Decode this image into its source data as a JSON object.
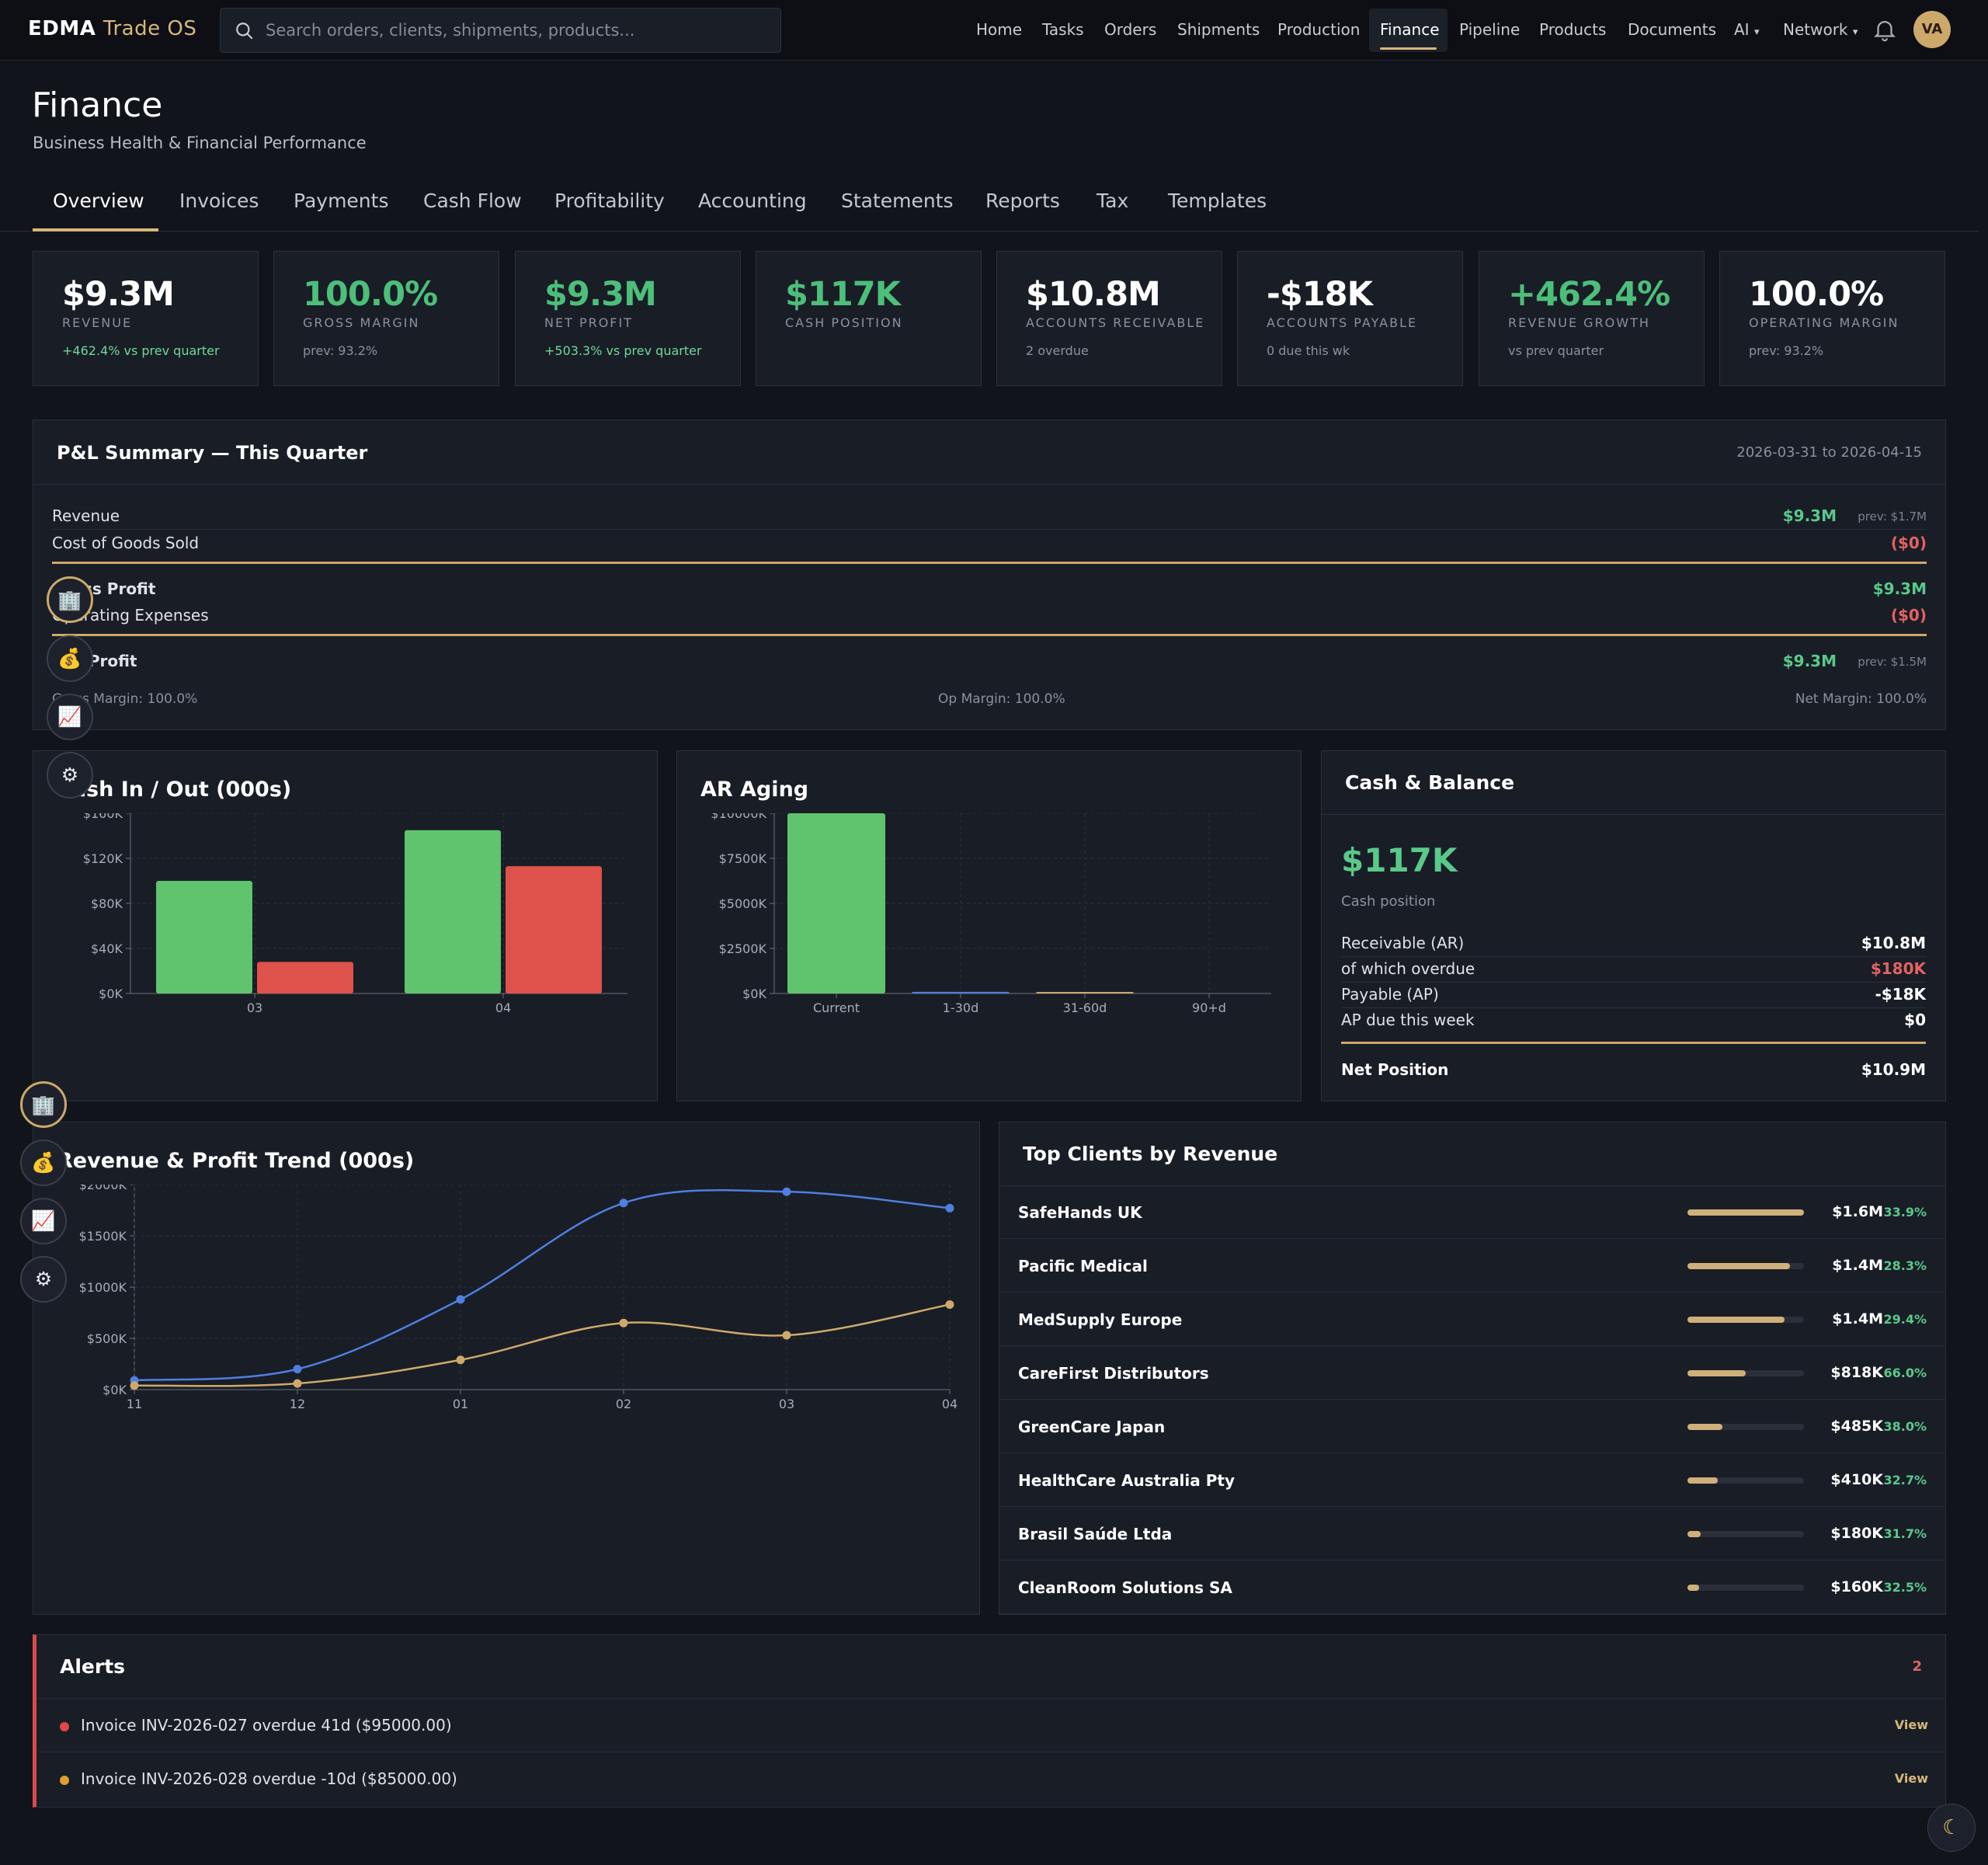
{
  "brand": {
    "name": "EDMA",
    "suffix": "Trade OS"
  },
  "search": {
    "placeholder": "Search orders, clients, shipments, products..."
  },
  "nav": {
    "items": [
      "Home",
      "Tasks",
      "Orders",
      "Shipments",
      "Production",
      "Finance",
      "Pipeline",
      "Products",
      "Documents",
      "AI",
      "Network"
    ],
    "active": "Finance"
  },
  "user": {
    "initials": "VA"
  },
  "page": {
    "title": "Finance",
    "subtitle": "Business Health & Financial Performance"
  },
  "tabs": [
    "Overview",
    "Invoices",
    "Payments",
    "Cash Flow",
    "Profitability",
    "Accounting",
    "Statements",
    "Reports",
    "Tax",
    "Templates"
  ],
  "kpis": [
    {
      "value": "$9.3M",
      "label": "REVENUE",
      "sub": "+462.4% vs prev quarter"
    },
    {
      "value": "100.0%",
      "label": "GROSS MARGIN",
      "sub": "prev: 93.2%"
    },
    {
      "value": "$9.3M",
      "label": "NET PROFIT",
      "sub": "+503.3% vs prev quarter"
    },
    {
      "value": "$117K",
      "label": "CASH POSITION",
      "sub": ""
    },
    {
      "value": "$10.8M",
      "label": "ACCOUNTS RECEIVABLE",
      "sub": "2 overdue"
    },
    {
      "value": "-$18K",
      "label": "ACCOUNTS PAYABLE",
      "sub": "0 due this wk"
    },
    {
      "value": "+462.4%",
      "label": "REVENUE GROWTH",
      "sub": "vs prev quarter"
    },
    {
      "value": "100.0%",
      "label": "OPERATING MARGIN",
      "sub": "prev: 93.2%"
    }
  ],
  "pl": {
    "title": "P&L Summary — This Quarter",
    "range": "2026-03-31 to 2026-04-15",
    "revenue": {
      "label": "Revenue",
      "value": "$9.3M",
      "prev": "prev: $1.7M"
    },
    "cogs": {
      "label": "Cost of Goods Sold",
      "value": "($0)"
    },
    "gross": {
      "label": "Gross Profit",
      "value": "$9.3M"
    },
    "opex": {
      "label": "Operating Expenses",
      "value": "($0)"
    },
    "net": {
      "label": "Net Profit",
      "value": "$9.3M",
      "prev": "prev: $1.5M"
    },
    "margins": {
      "gross": "Gross Margin: 100.0%",
      "op": "Op Margin: 100.0%",
      "net": "Net Margin: 100.0%"
    }
  },
  "cash_balance": {
    "title": "Cash & Balance",
    "cash": "$117K",
    "cash_label": "Cash position",
    "rows": [
      {
        "label": "Receivable (AR)",
        "value": "$10.8M"
      },
      {
        "label": "of which overdue",
        "value": "$180K"
      },
      {
        "label": "Payable (AP)",
        "value": "-$18K"
      },
      {
        "label": "AP due this week",
        "value": "$0"
      }
    ],
    "net_label": "Net Position",
    "net_value": "$10.9M"
  },
  "clients": {
    "title": "Top Clients by Revenue",
    "rows": [
      {
        "name": "SafeHands UK",
        "amount": "$1.6M",
        "pct": "33.9%",
        "share": 1.0
      },
      {
        "name": "Pacific Medical",
        "amount": "$1.4M",
        "pct": "28.3%",
        "share": 0.88
      },
      {
        "name": "MedSupply Europe",
        "amount": "$1.4M",
        "pct": "29.4%",
        "share": 0.83
      },
      {
        "name": "CareFirst Distributors",
        "amount": "$818K",
        "pct": "66.0%",
        "share": 0.5
      },
      {
        "name": "GreenCare Japan",
        "amount": "$485K",
        "pct": "38.0%",
        "share": 0.3
      },
      {
        "name": "HealthCare Australia Pty",
        "amount": "$410K",
        "pct": "32.7%",
        "share": 0.26
      },
      {
        "name": "Brasil Saúde Ltda",
        "amount": "$180K",
        "pct": "31.7%",
        "share": 0.11
      },
      {
        "name": "CleanRoom Solutions SA",
        "amount": "$160K",
        "pct": "32.5%",
        "share": 0.1
      }
    ]
  },
  "alerts": {
    "title": "Alerts",
    "count": "2",
    "items": [
      {
        "text": "Invoice INV-2026-027 overdue 41d ($95000.00)",
        "action": "View",
        "color": "#e04848"
      },
      {
        "text": "Invoice INV-2026-028 overdue -10d ($85000.00)",
        "action": "View",
        "color": "#e0a030"
      }
    ]
  },
  "floating_icons": [
    "building-icon",
    "money-bag-icon",
    "chart-icon",
    "gear-icon"
  ],
  "colors": {
    "accent": "#d7b87a",
    "green": "#5fc46d",
    "red": "#df524b",
    "blue": "#4f7fe0",
    "gold": "#cfa96a"
  },
  "chart_data": [
    {
      "type": "bar",
      "title": "Cash In / Out (000s)",
      "categories": [
        "03",
        "04"
      ],
      "series": [
        {
          "values": [
            100,
            145
          ],
          "color": "#5fc46d"
        },
        {
          "values": [
            28,
            113
          ],
          "color": "#df524b"
        }
      ],
      "yticks": [
        "$0K",
        "$40K",
        "$80K",
        "$120K",
        "$160K"
      ],
      "ylim": [
        0,
        160
      ]
    },
    {
      "type": "bar",
      "title": "AR Aging",
      "categories": [
        "Current",
        "1-30d",
        "31-60d",
        "90+d"
      ],
      "values": [
        10000,
        90,
        80,
        0
      ],
      "bar_colors": [
        "#5fc46d",
        "#4f7fe0",
        "#cfa96a",
        "#df524b"
      ],
      "yticks": [
        "$0K",
        "$2500K",
        "$5000K",
        "$7500K",
        "$10000K"
      ],
      "ylim": [
        0,
        10000
      ]
    },
    {
      "type": "line",
      "title": "Revenue & Profit Trend (000s)",
      "x": [
        "11",
        "12",
        "01",
        "02",
        "03",
        "04"
      ],
      "series": [
        {
          "values": [
            90,
            200,
            880,
            1820,
            1930,
            1770
          ],
          "color": "#4f7fe0"
        },
        {
          "values": [
            40,
            60,
            290,
            650,
            530,
            830
          ],
          "color": "#cfa96a"
        }
      ],
      "yticks": [
        "$0K",
        "$500K",
        "$1000K",
        "$1500K",
        "$2000K"
      ],
      "ylim": [
        0,
        2000
      ]
    }
  ]
}
